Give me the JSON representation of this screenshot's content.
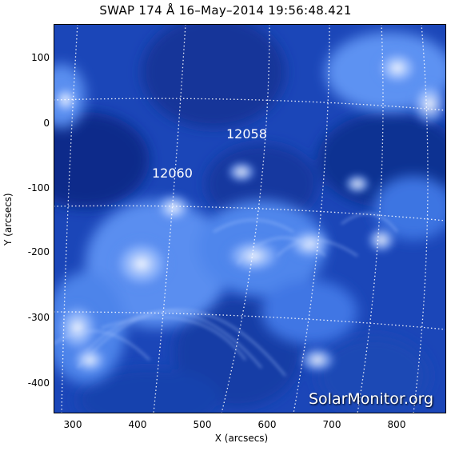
{
  "title": "SWAP 174 Å 16–May–2014 19:56:48.421",
  "axes": {
    "ylabel": "Y (arcsecs)",
    "xlabel": "X (arcsecs)",
    "yticks": [
      "100",
      "0",
      "-100",
      "-200",
      "-300",
      "-400"
    ],
    "xticks": [
      "300",
      "400",
      "500",
      "600",
      "700",
      "800"
    ]
  },
  "regions": [
    {
      "id": "12058"
    },
    {
      "id": "12060"
    }
  ],
  "watermark": "SolarMonitor.org",
  "colors": {
    "background": "#1b46b8",
    "bright": "#e6f0ff",
    "dark": "#0b2a86"
  }
}
